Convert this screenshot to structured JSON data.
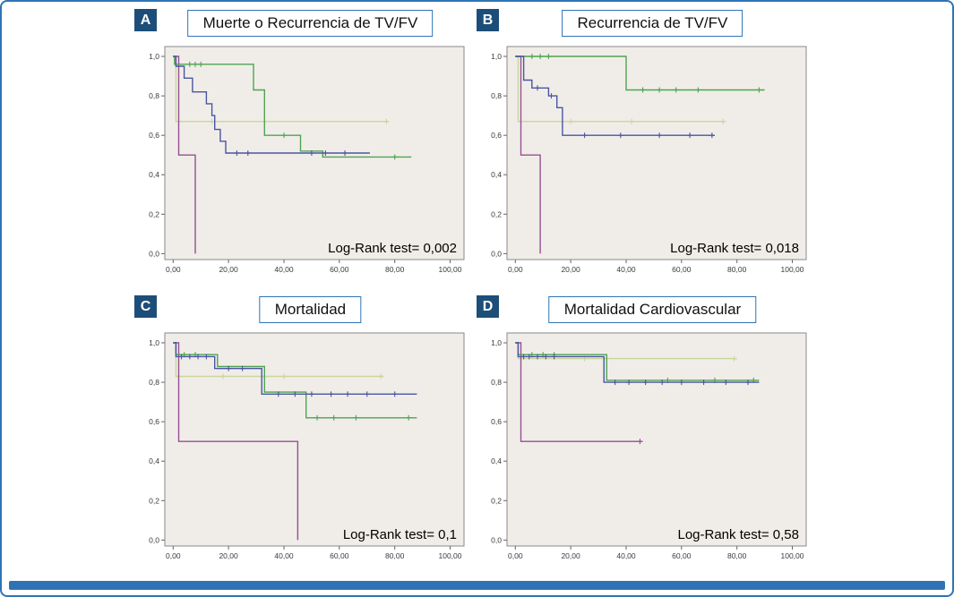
{
  "figure": {
    "border_color": "#2e74b5",
    "badge_bg": "#1d4e79",
    "plot_bg": "#f0ede9",
    "plot_border": "#8a8a8a"
  },
  "chart_data": [
    {
      "letter": "A",
      "type": "line",
      "subtype": "kaplan-meier-step",
      "title": "Muerte o Recurrencia de TV/FV",
      "annotation": "Log-Rank test= 0,002",
      "xlabel": "",
      "ylabel": "",
      "xlim": [
        0,
        100
      ],
      "ylim": [
        0,
        1
      ],
      "grid": false,
      "legend": "none",
      "x_ticks": {
        "values": [
          0,
          20,
          40,
          60,
          80,
          100
        ],
        "labels": [
          "0,00",
          "20,00",
          "40,00",
          "60,00",
          "80,00",
          "100,00"
        ]
      },
      "y_ticks": {
        "values": [
          0,
          0.2,
          0.4,
          0.6,
          0.8,
          1
        ],
        "labels": [
          "0,0",
          "0,2",
          "0,4",
          "0,6",
          "0,8",
          "1,0"
        ]
      },
      "series": [
        {
          "id": "olive",
          "color": "#c9d69b",
          "points": [
            [
              0,
              1.0
            ],
            [
              1,
              1.0
            ],
            [
              1,
              0.67
            ],
            [
              78,
              0.67
            ]
          ],
          "censors": [
            [
              14,
              0.67
            ],
            [
              33,
              0.67
            ],
            [
              77,
              0.67
            ]
          ]
        },
        {
          "id": "purple",
          "color": "#964f93",
          "points": [
            [
              0,
              1.0
            ],
            [
              2,
              1.0
            ],
            [
              2,
              0.5
            ],
            [
              8,
              0.5
            ],
            [
              8,
              0.0
            ]
          ],
          "censors": []
        },
        {
          "id": "green",
          "color": "#4fa44f",
          "points": [
            [
              0,
              1.0
            ],
            [
              0.5,
              1.0
            ],
            [
              0.5,
              0.96
            ],
            [
              29,
              0.96
            ],
            [
              29,
              0.83
            ],
            [
              33,
              0.83
            ],
            [
              33,
              0.6
            ],
            [
              46,
              0.6
            ],
            [
              46,
              0.52
            ],
            [
              54,
              0.52
            ],
            [
              54,
              0.49
            ],
            [
              86,
              0.49
            ]
          ],
          "censors": [
            [
              6,
              0.96
            ],
            [
              8,
              0.96
            ],
            [
              10,
              0.96
            ],
            [
              40,
              0.6
            ],
            [
              80,
              0.49
            ]
          ]
        },
        {
          "id": "blue",
          "color": "#4a55a3",
          "points": [
            [
              0,
              1.0
            ],
            [
              1,
              1.0
            ],
            [
              1,
              0.95
            ],
            [
              4,
              0.95
            ],
            [
              4,
              0.89
            ],
            [
              7,
              0.89
            ],
            [
              7,
              0.82
            ],
            [
              12,
              0.82
            ],
            [
              12,
              0.76
            ],
            [
              14,
              0.76
            ],
            [
              14,
              0.7
            ],
            [
              15,
              0.7
            ],
            [
              15,
              0.63
            ],
            [
              17,
              0.63
            ],
            [
              17,
              0.57
            ],
            [
              19,
              0.57
            ],
            [
              19,
              0.51
            ],
            [
              71,
              0.51
            ]
          ],
          "censors": [
            [
              23,
              0.51
            ],
            [
              27,
              0.51
            ],
            [
              50,
              0.51
            ],
            [
              55,
              0.51
            ],
            [
              62,
              0.51
            ]
          ]
        }
      ]
    },
    {
      "letter": "B",
      "type": "line",
      "subtype": "kaplan-meier-step",
      "title": "Recurrencia de TV/FV",
      "annotation": "Log-Rank test= 0,018",
      "xlabel": "",
      "ylabel": "",
      "xlim": [
        0,
        100
      ],
      "ylim": [
        0,
        1
      ],
      "grid": false,
      "legend": "none",
      "x_ticks": {
        "values": [
          0,
          20,
          40,
          60,
          80,
          100
        ],
        "labels": [
          "0,00",
          "20,00",
          "40,00",
          "60,00",
          "80,00",
          "100,00"
        ]
      },
      "y_ticks": {
        "values": [
          0,
          0.2,
          0.4,
          0.6,
          0.8,
          1
        ],
        "labels": [
          "0,0",
          "0,2",
          "0,4",
          "0,6",
          "0,8",
          "1,0"
        ]
      },
      "series": [
        {
          "id": "olive",
          "color": "#c9d69b",
          "points": [
            [
              0,
              1.0
            ],
            [
              1,
              1.0
            ],
            [
              1,
              0.67
            ],
            [
              76,
              0.67
            ]
          ],
          "censors": [
            [
              20,
              0.67
            ],
            [
              42,
              0.67
            ],
            [
              75,
              0.67
            ]
          ]
        },
        {
          "id": "purple",
          "color": "#964f93",
          "points": [
            [
              0,
              1.0
            ],
            [
              2,
              1.0
            ],
            [
              2,
              0.5
            ],
            [
              9,
              0.5
            ],
            [
              9,
              0.0
            ]
          ],
          "censors": []
        },
        {
          "id": "green",
          "color": "#4fa44f",
          "points": [
            [
              0,
              1.0
            ],
            [
              40,
              1.0
            ],
            [
              40,
              0.83
            ],
            [
              90,
              0.83
            ]
          ],
          "censors": [
            [
              6,
              1.0
            ],
            [
              9,
              1.0
            ],
            [
              12,
              1.0
            ],
            [
              46,
              0.83
            ],
            [
              52,
              0.83
            ],
            [
              58,
              0.83
            ],
            [
              66,
              0.83
            ],
            [
              88,
              0.83
            ]
          ]
        },
        {
          "id": "blue",
          "color": "#4a55a3",
          "points": [
            [
              0,
              1.0
            ],
            [
              3,
              1.0
            ],
            [
              3,
              0.88
            ],
            [
              6,
              0.88
            ],
            [
              6,
              0.84
            ],
            [
              12,
              0.84
            ],
            [
              12,
              0.8
            ],
            [
              15,
              0.8
            ],
            [
              15,
              0.74
            ],
            [
              17,
              0.74
            ],
            [
              17,
              0.6
            ],
            [
              72,
              0.6
            ]
          ],
          "censors": [
            [
              8,
              0.84
            ],
            [
              13,
              0.8
            ],
            [
              25,
              0.6
            ],
            [
              38,
              0.6
            ],
            [
              52,
              0.6
            ],
            [
              63,
              0.6
            ],
            [
              71,
              0.6
            ]
          ]
        }
      ]
    },
    {
      "letter": "C",
      "type": "line",
      "subtype": "kaplan-meier-step",
      "title": "Mortalidad",
      "annotation": "Log-Rank test= 0,1",
      "xlabel": "",
      "ylabel": "",
      "xlim": [
        0,
        100
      ],
      "ylim": [
        0,
        1
      ],
      "grid": false,
      "legend": "none",
      "x_ticks": {
        "values": [
          0,
          20,
          40,
          60,
          80,
          100
        ],
        "labels": [
          "0,00",
          "20,00",
          "40,00",
          "60,00",
          "80,00",
          "100,00"
        ]
      },
      "y_ticks": {
        "values": [
          0,
          0.2,
          0.4,
          0.6,
          0.8,
          1
        ],
        "labels": [
          "0,0",
          "0,2",
          "0,4",
          "0,6",
          "0,8",
          "1,0"
        ]
      },
      "series": [
        {
          "id": "olive",
          "color": "#c9d69b",
          "points": [
            [
              0,
              1.0
            ],
            [
              1,
              1.0
            ],
            [
              1,
              0.83
            ],
            [
              76,
              0.83
            ]
          ],
          "censors": [
            [
              18,
              0.83
            ],
            [
              40,
              0.83
            ],
            [
              75,
              0.83
            ]
          ]
        },
        {
          "id": "purple",
          "color": "#964f93",
          "points": [
            [
              0,
              1.0
            ],
            [
              2,
              1.0
            ],
            [
              2,
              0.5
            ],
            [
              45,
              0.5
            ],
            [
              45,
              0.0
            ]
          ],
          "censors": []
        },
        {
          "id": "green",
          "color": "#4fa44f",
          "points": [
            [
              0,
              1.0
            ],
            [
              1,
              1.0
            ],
            [
              1,
              0.94
            ],
            [
              16,
              0.94
            ],
            [
              16,
              0.88
            ],
            [
              33,
              0.88
            ],
            [
              33,
              0.75
            ],
            [
              48,
              0.75
            ],
            [
              48,
              0.62
            ],
            [
              88,
              0.62
            ]
          ],
          "censors": [
            [
              4,
              0.94
            ],
            [
              8,
              0.94
            ],
            [
              52,
              0.62
            ],
            [
              58,
              0.62
            ],
            [
              66,
              0.62
            ],
            [
              85,
              0.62
            ]
          ]
        },
        {
          "id": "blue",
          "color": "#4a55a3",
          "points": [
            [
              0,
              1.0
            ],
            [
              1,
              1.0
            ],
            [
              1,
              0.93
            ],
            [
              15,
              0.93
            ],
            [
              15,
              0.87
            ],
            [
              32,
              0.87
            ],
            [
              32,
              0.74
            ],
            [
              88,
              0.74
            ]
          ],
          "censors": [
            [
              3,
              0.93
            ],
            [
              6,
              0.93
            ],
            [
              9,
              0.93
            ],
            [
              12,
              0.93
            ],
            [
              20,
              0.87
            ],
            [
              25,
              0.87
            ],
            [
              38,
              0.74
            ],
            [
              44,
              0.74
            ],
            [
              50,
              0.74
            ],
            [
              57,
              0.74
            ],
            [
              63,
              0.74
            ],
            [
              70,
              0.74
            ],
            [
              80,
              0.74
            ]
          ]
        }
      ]
    },
    {
      "letter": "D",
      "type": "line",
      "subtype": "kaplan-meier-step",
      "title": "Mortalidad Cardiovascular",
      "annotation": "Log-Rank test= 0,58",
      "xlabel": "",
      "ylabel": "",
      "xlim": [
        0,
        100
      ],
      "ylim": [
        0,
        1
      ],
      "grid": false,
      "legend": "none",
      "x_ticks": {
        "values": [
          0,
          20,
          40,
          60,
          80,
          100
        ],
        "labels": [
          "0,00",
          "20,00",
          "40,00",
          "60,00",
          "80,00",
          "100,00"
        ]
      },
      "y_ticks": {
        "values": [
          0,
          0.2,
          0.4,
          0.6,
          0.8,
          1
        ],
        "labels": [
          "0,0",
          "0,2",
          "0,4",
          "0,6",
          "0,8",
          "1,0"
        ]
      },
      "series": [
        {
          "id": "olive",
          "color": "#c9d69b",
          "points": [
            [
              0,
              1.0
            ],
            [
              1,
              1.0
            ],
            [
              1,
              0.92
            ],
            [
              80,
              0.92
            ]
          ],
          "censors": [
            [
              25,
              0.92
            ],
            [
              79,
              0.92
            ]
          ]
        },
        {
          "id": "purple",
          "color": "#964f93",
          "points": [
            [
              0,
              1.0
            ],
            [
              2,
              1.0
            ],
            [
              2,
              0.5
            ],
            [
              46,
              0.5
            ]
          ],
          "censors": [
            [
              45,
              0.5
            ]
          ]
        },
        {
          "id": "green",
          "color": "#4fa44f",
          "points": [
            [
              0,
              1.0
            ],
            [
              1,
              1.0
            ],
            [
              1,
              0.94
            ],
            [
              33,
              0.94
            ],
            [
              33,
              0.81
            ],
            [
              88,
              0.81
            ]
          ],
          "censors": [
            [
              6,
              0.94
            ],
            [
              10,
              0.94
            ],
            [
              14,
              0.94
            ],
            [
              55,
              0.81
            ],
            [
              72,
              0.81
            ],
            [
              86,
              0.81
            ]
          ]
        },
        {
          "id": "blue",
          "color": "#4a55a3",
          "points": [
            [
              0,
              1.0
            ],
            [
              1,
              1.0
            ],
            [
              1,
              0.93
            ],
            [
              32,
              0.93
            ],
            [
              32,
              0.8
            ],
            [
              88,
              0.8
            ]
          ],
          "censors": [
            [
              3,
              0.93
            ],
            [
              5,
              0.93
            ],
            [
              8,
              0.93
            ],
            [
              11,
              0.93
            ],
            [
              14,
              0.93
            ],
            [
              36,
              0.8
            ],
            [
              41,
              0.8
            ],
            [
              47,
              0.8
            ],
            [
              53,
              0.8
            ],
            [
              60,
              0.8
            ],
            [
              68,
              0.8
            ],
            [
              76,
              0.8
            ],
            [
              84,
              0.8
            ]
          ]
        }
      ]
    }
  ]
}
